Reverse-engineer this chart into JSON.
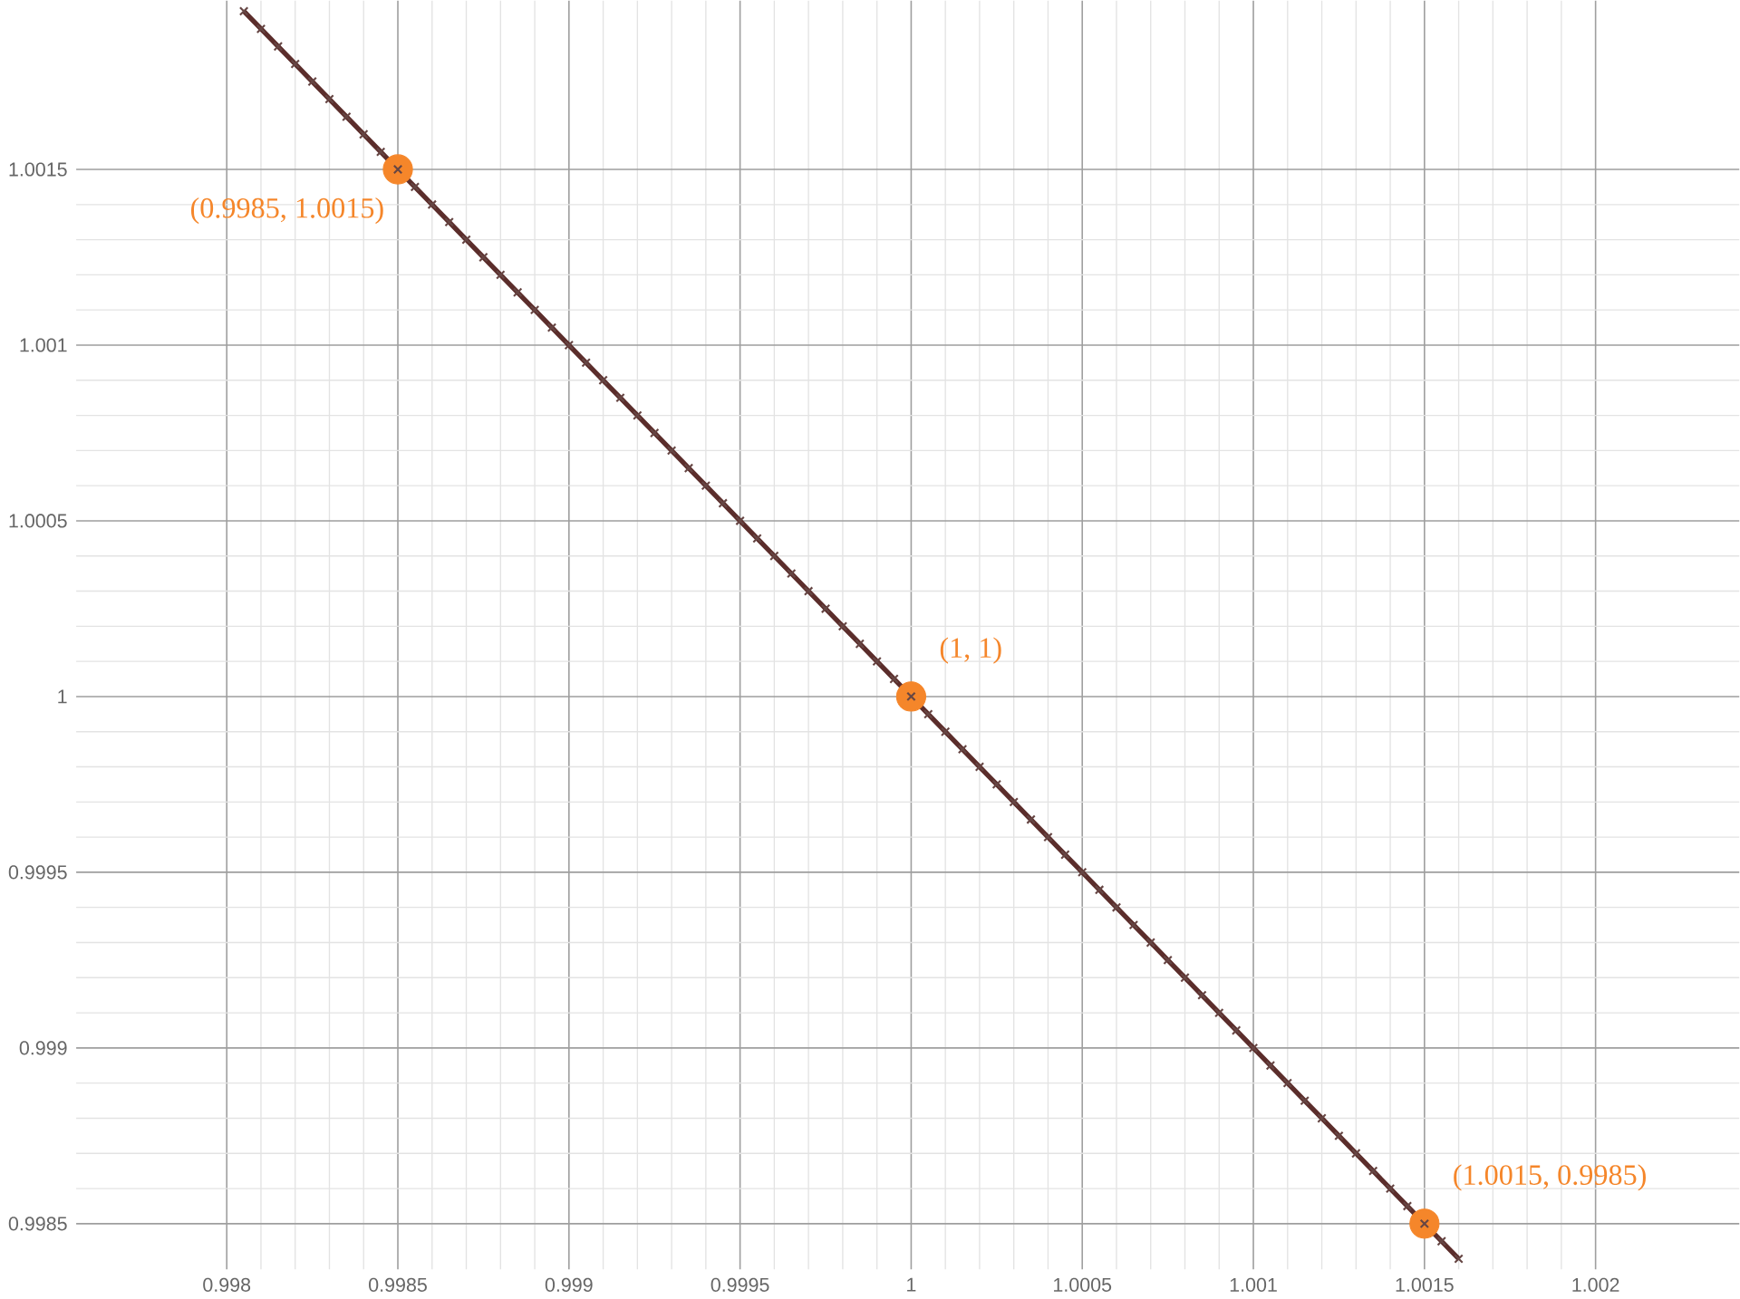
{
  "chart_data": {
    "type": "line",
    "xlim": [
      0.99756,
      1.00242
    ],
    "ylim": [
      0.99837,
      1.00198
    ],
    "xticks": [
      0.998,
      0.9985,
      0.999,
      0.9995,
      1,
      1.0005,
      1.001,
      1.0015,
      1.002
    ],
    "yticks": [
      0.9985,
      0.999,
      0.9995,
      1,
      1.0005,
      1.001,
      1.0015
    ],
    "grid": true,
    "series": [
      {
        "color": "#5b2d2b",
        "marker": "cross",
        "line_style": "solid",
        "x": [
          0.99805,
          0.9981,
          0.99815,
          0.9982,
          0.99825,
          0.9983,
          0.99835,
          0.9984,
          0.99845,
          0.9985,
          0.99855,
          0.9986,
          0.99865,
          0.9987,
          0.99875,
          0.9988,
          0.99885,
          0.9989,
          0.99895,
          0.999,
          0.99905,
          0.9991,
          0.99915,
          0.9992,
          0.99925,
          0.9993,
          0.99935,
          0.9994,
          0.99945,
          0.9995,
          0.99955,
          0.9996,
          0.99965,
          0.9997,
          0.99975,
          0.9998,
          0.99985,
          0.9999,
          0.99995,
          1,
          1.00005,
          1.0001,
          1.00015,
          1.0002,
          1.00025,
          1.0003,
          1.00035,
          1.0004,
          1.00045,
          1.0005,
          1.00055,
          1.0006,
          1.00065,
          1.0007,
          1.00075,
          1.0008,
          1.00085,
          1.0009,
          1.00095,
          1.001,
          1.00105,
          1.0011,
          1.00115,
          1.0012,
          1.00125,
          1.0013,
          1.00135,
          1.0014,
          1.00145,
          1.0015,
          1.00155,
          1.0016
        ],
        "values": [
          1.00195,
          1.0019,
          1.00185,
          1.0018,
          1.00175,
          1.0017,
          1.00165,
          1.0016,
          1.00155,
          1.0015,
          1.00145,
          1.0014,
          1.00135,
          1.0013,
          1.00125,
          1.0012,
          1.00115,
          1.0011,
          1.00105,
          1.001,
          1.00095,
          1.0009,
          1.00085,
          1.0008,
          1.00075,
          1.0007,
          1.00065,
          1.0006,
          1.00055,
          1.0005,
          1.00045,
          1.0004,
          1.00035,
          1.0003,
          1.00025,
          1.0002,
          1.00015,
          1.0001,
          1.00005,
          1,
          0.99995,
          0.9999,
          0.99985,
          0.9998,
          0.99975,
          0.9997,
          0.99965,
          0.9996,
          0.99955,
          0.9995,
          0.99945,
          0.9994,
          0.99935,
          0.9993,
          0.99925,
          0.9992,
          0.99915,
          0.9991,
          0.99905,
          0.999,
          0.99895,
          0.9989,
          0.99885,
          0.9988,
          0.99875,
          0.9987,
          0.99865,
          0.9986,
          0.99855,
          0.9985,
          0.99845,
          0.9984
        ]
      },
      {
        "type": "scatter",
        "color": "#f5862a",
        "marker": "circle",
        "x": [
          0.9985,
          1,
          1.0015
        ],
        "values": [
          1.0015,
          1,
          0.9985
        ]
      }
    ],
    "annotations": [
      {
        "text": "(0.9985, 1.0015)",
        "x": 0.9985,
        "y": 1.0015
      },
      {
        "text": "(1, 1)",
        "x": 1,
        "y": 1
      },
      {
        "text": "(1.0015, 0.9985)",
        "x": 1.0015,
        "y": 0.9985
      }
    ]
  }
}
